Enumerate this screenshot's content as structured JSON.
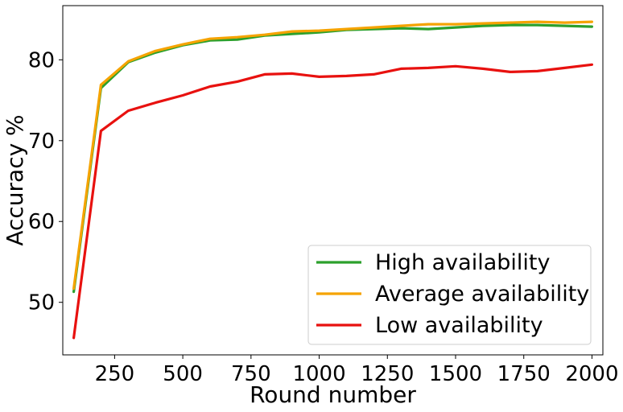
{
  "chart_data": {
    "type": "line",
    "title": "",
    "xlabel": "Round number",
    "ylabel": "Accuracy %",
    "xlim": [
      60,
      2040
    ],
    "ylim": [
      43.5,
      86.7
    ],
    "xticks": [
      250,
      500,
      750,
      1000,
      1250,
      1500,
      1750,
      2000
    ],
    "xtick_labels": [
      "250",
      "500",
      "750",
      "1000",
      "1250",
      "1500",
      "1750",
      "2000"
    ],
    "yticks": [
      50,
      60,
      70,
      80
    ],
    "ytick_labels": [
      "50",
      "60",
      "70",
      "80"
    ],
    "grid": false,
    "legend_position": "lower-right",
    "x": [
      100,
      200,
      300,
      400,
      500,
      600,
      700,
      800,
      900,
      1000,
      1100,
      1200,
      1300,
      1400,
      1500,
      1600,
      1700,
      1800,
      1900,
      2000
    ],
    "series": [
      {
        "name": "High availability",
        "color": "#2ca02c",
        "values": [
          51.3,
          76.5,
          79.7,
          80.9,
          81.8,
          82.4,
          82.5,
          83.0,
          83.2,
          83.4,
          83.7,
          83.8,
          83.9,
          83.8,
          84.0,
          84.2,
          84.3,
          84.3,
          84.2,
          84.1
        ]
      },
      {
        "name": "Average availability",
        "color": "#f5a300",
        "values": [
          51.7,
          76.9,
          79.8,
          81.1,
          81.9,
          82.6,
          82.8,
          83.1,
          83.5,
          83.6,
          83.8,
          84.0,
          84.2,
          84.4,
          84.4,
          84.5,
          84.6,
          84.7,
          84.6,
          84.7
        ]
      },
      {
        "name": "Low availability",
        "color": "#e8110f",
        "values": [
          45.6,
          71.2,
          73.7,
          74.7,
          75.6,
          76.7,
          77.3,
          78.2,
          78.3,
          77.9,
          78.0,
          78.2,
          78.9,
          79.0,
          79.2,
          78.9,
          78.5,
          78.6,
          79.0,
          79.4
        ]
      }
    ]
  }
}
